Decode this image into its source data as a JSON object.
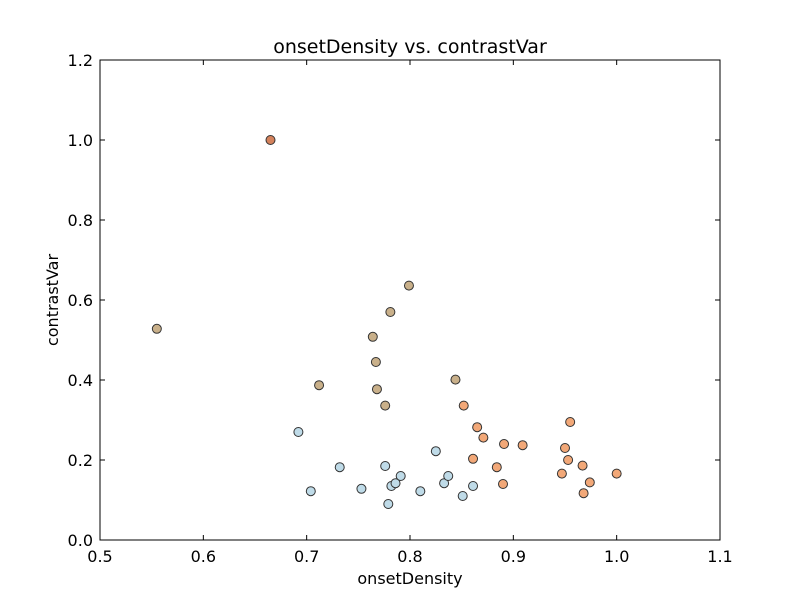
{
  "chart_data": {
    "type": "scatter",
    "title": "onsetDensity vs. contrastVar",
    "xlabel": "onsetDensity",
    "ylabel": "contrastVar",
    "xlim": [
      0.5,
      1.1
    ],
    "ylim": [
      0.0,
      1.2
    ],
    "xticks": [
      "0.5",
      "0.6",
      "0.7",
      "0.8",
      "0.9",
      "1.0",
      "1.1"
    ],
    "yticks": [
      "0.0",
      "0.2",
      "0.4",
      "0.6",
      "0.8",
      "1.0",
      "1.2"
    ],
    "grid": false,
    "series": [
      {
        "color": "#bfdbe8",
        "points": [
          [
            0.692,
            0.27
          ],
          [
            0.704,
            0.122
          ],
          [
            0.732,
            0.182
          ],
          [
            0.753,
            0.128
          ],
          [
            0.776,
            0.185
          ],
          [
            0.779,
            0.09
          ],
          [
            0.782,
            0.135
          ],
          [
            0.786,
            0.142
          ],
          [
            0.791,
            0.16
          ],
          [
            0.81,
            0.122
          ],
          [
            0.825,
            0.222
          ],
          [
            0.833,
            0.142
          ],
          [
            0.837,
            0.16
          ],
          [
            0.851,
            0.11
          ],
          [
            0.861,
            0.135
          ]
        ]
      },
      {
        "color": "#f2a878",
        "points": [
          [
            0.852,
            0.336
          ],
          [
            0.865,
            0.282
          ],
          [
            0.871,
            0.256
          ],
          [
            0.861,
            0.203
          ],
          [
            0.884,
            0.182
          ],
          [
            0.891,
            0.24
          ],
          [
            0.89,
            0.14
          ],
          [
            0.909,
            0.237
          ],
          [
            0.947,
            0.166
          ],
          [
            0.95,
            0.23
          ],
          [
            0.953,
            0.2
          ],
          [
            0.955,
            0.295
          ],
          [
            0.967,
            0.186
          ],
          [
            0.968,
            0.117
          ],
          [
            0.974,
            0.144
          ],
          [
            1.0,
            0.166
          ]
        ]
      },
      {
        "color": "#c9b08a",
        "points": [
          [
            0.555,
            0.528
          ],
          [
            0.712,
            0.387
          ],
          [
            0.764,
            0.508
          ],
          [
            0.767,
            0.445
          ],
          [
            0.768,
            0.377
          ],
          [
            0.776,
            0.336
          ],
          [
            0.781,
            0.57
          ],
          [
            0.799,
            0.636
          ],
          [
            0.844,
            0.401
          ]
        ]
      },
      {
        "color": "#d4825c",
        "points": [
          [
            0.665,
            1.0
          ]
        ]
      }
    ]
  }
}
